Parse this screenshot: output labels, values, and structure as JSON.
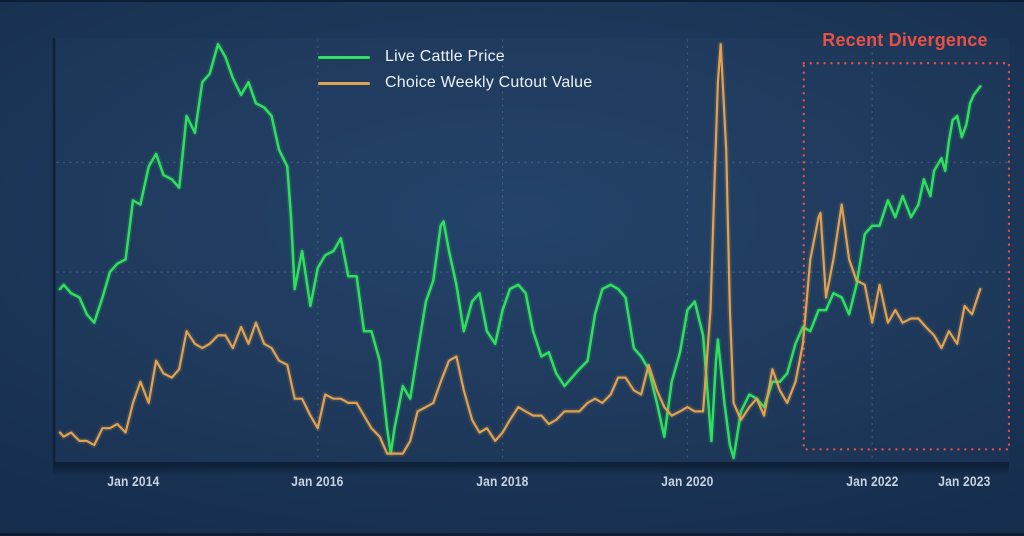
{
  "chart_data": {
    "type": "line",
    "title": "",
    "background_color": "#1c3759",
    "legend_position": "top-center",
    "grid": "dotted",
    "annotation": {
      "label": "Recent Divergence",
      "color": "#ea5044",
      "box": {
        "t0": 2021.26,
        "t1": 2023.48,
        "v0": 3,
        "v1": 94.5
      }
    },
    "x_axis": {
      "domain": [
        2013.18,
        2023.49
      ],
      "ticks": [
        {
          "t": 2014,
          "label": "Jan 2014"
        },
        {
          "t": 2016,
          "label": "Jan 2016"
        },
        {
          "t": 2018,
          "label": "Jan 2018"
        },
        {
          "t": 2020,
          "label": "Jan 2020"
        },
        {
          "t": 2022,
          "label": "Jan 2022"
        },
        {
          "t": 2023,
          "label": "Jan 2023"
        }
      ]
    },
    "y_axis": {
      "domain": [
        0,
        105
      ],
      "unit": "relative level (y-axis unlabeled in source)",
      "ticks": []
    },
    "gridlines": {
      "horizontal_values": [
        45,
        71
      ],
      "vertical_years": [
        2016,
        2018,
        2020,
        2022
      ]
    },
    "series": [
      {
        "name": "Live Cattle Price",
        "color": "#2fe05e",
        "points": [
          [
            2013.21,
            41
          ],
          [
            2013.25,
            42
          ],
          [
            2013.33,
            40
          ],
          [
            2013.42,
            39
          ],
          [
            2013.5,
            35
          ],
          [
            2013.58,
            33
          ],
          [
            2013.67,
            39
          ],
          [
            2013.75,
            45
          ],
          [
            2013.83,
            47
          ],
          [
            2013.92,
            48
          ],
          [
            2014,
            62
          ],
          [
            2014.08,
            61
          ],
          [
            2014.17,
            70
          ],
          [
            2014.25,
            73
          ],
          [
            2014.33,
            68
          ],
          [
            2014.42,
            67
          ],
          [
            2014.5,
            65
          ],
          [
            2014.58,
            82
          ],
          [
            2014.67,
            78
          ],
          [
            2014.75,
            90
          ],
          [
            2014.83,
            92
          ],
          [
            2014.92,
            99
          ],
          [
            2015,
            96
          ],
          [
            2015.08,
            91
          ],
          [
            2015.17,
            87
          ],
          [
            2015.25,
            90
          ],
          [
            2015.33,
            85
          ],
          [
            2015.42,
            84
          ],
          [
            2015.5,
            82
          ],
          [
            2015.58,
            74
          ],
          [
            2015.67,
            70
          ],
          [
            2015.71,
            58
          ],
          [
            2015.75,
            41
          ],
          [
            2015.83,
            50
          ],
          [
            2015.92,
            37
          ],
          [
            2016,
            46
          ],
          [
            2016.08,
            49
          ],
          [
            2016.17,
            50
          ],
          [
            2016.25,
            53
          ],
          [
            2016.33,
            44
          ],
          [
            2016.42,
            44
          ],
          [
            2016.5,
            31
          ],
          [
            2016.58,
            31
          ],
          [
            2016.67,
            24
          ],
          [
            2016.75,
            8
          ],
          [
            2016.79,
            2
          ],
          [
            2016.83,
            8
          ],
          [
            2016.92,
            18
          ],
          [
            2017,
            15
          ],
          [
            2017.08,
            26
          ],
          [
            2017.17,
            38
          ],
          [
            2017.25,
            43
          ],
          [
            2017.33,
            56
          ],
          [
            2017.36,
            57
          ],
          [
            2017.42,
            50
          ],
          [
            2017.5,
            42
          ],
          [
            2017.58,
            31
          ],
          [
            2017.67,
            38
          ],
          [
            2017.75,
            40
          ],
          [
            2017.83,
            31
          ],
          [
            2017.92,
            28
          ],
          [
            2018,
            36
          ],
          [
            2018.08,
            41
          ],
          [
            2018.17,
            42
          ],
          [
            2018.25,
            40
          ],
          [
            2018.33,
            31
          ],
          [
            2018.42,
            25
          ],
          [
            2018.5,
            26
          ],
          [
            2018.58,
            21
          ],
          [
            2018.67,
            18
          ],
          [
            2018.75,
            20
          ],
          [
            2018.83,
            22
          ],
          [
            2018.92,
            24
          ],
          [
            2019,
            35
          ],
          [
            2019.08,
            41
          ],
          [
            2019.17,
            42
          ],
          [
            2019.25,
            41
          ],
          [
            2019.33,
            39
          ],
          [
            2019.42,
            27
          ],
          [
            2019.5,
            25
          ],
          [
            2019.58,
            22
          ],
          [
            2019.67,
            14
          ],
          [
            2019.75,
            6
          ],
          [
            2019.83,
            19
          ],
          [
            2019.92,
            26
          ],
          [
            2020,
            36
          ],
          [
            2020.08,
            38
          ],
          [
            2020.17,
            30
          ],
          [
            2020.22,
            16
          ],
          [
            2020.26,
            5
          ],
          [
            2020.31,
            24
          ],
          [
            2020.33,
            29
          ],
          [
            2020.4,
            14
          ],
          [
            2020.46,
            4
          ],
          [
            2020.5,
            1
          ],
          [
            2020.58,
            12
          ],
          [
            2020.67,
            16
          ],
          [
            2020.75,
            15
          ],
          [
            2020.83,
            13
          ],
          [
            2020.92,
            19
          ],
          [
            2021,
            19
          ],
          [
            2021.08,
            21
          ],
          [
            2021.17,
            28
          ],
          [
            2021.25,
            32
          ],
          [
            2021.33,
            31
          ],
          [
            2021.42,
            36
          ],
          [
            2021.5,
            36
          ],
          [
            2021.58,
            40
          ],
          [
            2021.67,
            39
          ],
          [
            2021.75,
            35
          ],
          [
            2021.83,
            42
          ],
          [
            2021.92,
            54
          ],
          [
            2022,
            56
          ],
          [
            2022.08,
            56
          ],
          [
            2022.17,
            62
          ],
          [
            2022.25,
            58
          ],
          [
            2022.33,
            63
          ],
          [
            2022.42,
            58
          ],
          [
            2022.5,
            61
          ],
          [
            2022.56,
            67
          ],
          [
            2022.63,
            63
          ],
          [
            2022.67,
            69
          ],
          [
            2022.75,
            72
          ],
          [
            2022.79,
            69
          ],
          [
            2022.83,
            76
          ],
          [
            2022.87,
            81
          ],
          [
            2022.92,
            82
          ],
          [
            2022.97,
            77
          ],
          [
            2023.02,
            80
          ],
          [
            2023.06,
            85
          ],
          [
            2023.1,
            87
          ],
          [
            2023.17,
            89
          ]
        ]
      },
      {
        "name": "Choice Weekly Cutout Value",
        "color": "#e1a34f",
        "points": [
          [
            2013.21,
            7
          ],
          [
            2013.25,
            6
          ],
          [
            2013.33,
            7
          ],
          [
            2013.42,
            5
          ],
          [
            2013.5,
            5
          ],
          [
            2013.58,
            4
          ],
          [
            2013.67,
            8
          ],
          [
            2013.75,
            8
          ],
          [
            2013.83,
            9
          ],
          [
            2013.92,
            7
          ],
          [
            2014,
            14
          ],
          [
            2014.08,
            19
          ],
          [
            2014.17,
            14
          ],
          [
            2014.25,
            24
          ],
          [
            2014.33,
            21
          ],
          [
            2014.42,
            20
          ],
          [
            2014.5,
            22
          ],
          [
            2014.58,
            31
          ],
          [
            2014.67,
            28
          ],
          [
            2014.75,
            27
          ],
          [
            2014.83,
            28
          ],
          [
            2014.92,
            30
          ],
          [
            2015,
            30
          ],
          [
            2015.08,
            27
          ],
          [
            2015.17,
            32
          ],
          [
            2015.25,
            28
          ],
          [
            2015.33,
            33
          ],
          [
            2015.42,
            28
          ],
          [
            2015.5,
            27
          ],
          [
            2015.58,
            24
          ],
          [
            2015.67,
            23
          ],
          [
            2015.75,
            15
          ],
          [
            2015.83,
            15
          ],
          [
            2015.92,
            11
          ],
          [
            2016,
            8
          ],
          [
            2016.08,
            16
          ],
          [
            2016.17,
            15
          ],
          [
            2016.25,
            15
          ],
          [
            2016.33,
            14
          ],
          [
            2016.42,
            14
          ],
          [
            2016.5,
            11
          ],
          [
            2016.58,
            8
          ],
          [
            2016.67,
            6
          ],
          [
            2016.75,
            2
          ],
          [
            2016.83,
            2
          ],
          [
            2016.92,
            2
          ],
          [
            2017,
            5
          ],
          [
            2017.08,
            12
          ],
          [
            2017.17,
            13
          ],
          [
            2017.25,
            14
          ],
          [
            2017.33,
            19
          ],
          [
            2017.42,
            24
          ],
          [
            2017.5,
            25
          ],
          [
            2017.58,
            17
          ],
          [
            2017.67,
            10
          ],
          [
            2017.75,
            7
          ],
          [
            2017.83,
            8
          ],
          [
            2017.92,
            5
          ],
          [
            2018,
            7
          ],
          [
            2018.08,
            10
          ],
          [
            2018.17,
            13
          ],
          [
            2018.25,
            12
          ],
          [
            2018.33,
            11
          ],
          [
            2018.42,
            11
          ],
          [
            2018.5,
            9
          ],
          [
            2018.58,
            10
          ],
          [
            2018.67,
            12
          ],
          [
            2018.75,
            12
          ],
          [
            2018.83,
            12
          ],
          [
            2018.92,
            14
          ],
          [
            2019,
            15
          ],
          [
            2019.08,
            14
          ],
          [
            2019.17,
            16
          ],
          [
            2019.25,
            20
          ],
          [
            2019.33,
            20
          ],
          [
            2019.42,
            17
          ],
          [
            2019.5,
            16
          ],
          [
            2019.58,
            23
          ],
          [
            2019.67,
            17
          ],
          [
            2019.75,
            13
          ],
          [
            2019.83,
            11
          ],
          [
            2019.92,
            12
          ],
          [
            2020,
            13
          ],
          [
            2020.08,
            12
          ],
          [
            2020.17,
            12
          ],
          [
            2020.25,
            36
          ],
          [
            2020.29,
            64
          ],
          [
            2020.33,
            90
          ],
          [
            2020.36,
            99
          ],
          [
            2020.42,
            74
          ],
          [
            2020.46,
            36
          ],
          [
            2020.5,
            14
          ],
          [
            2020.58,
            10
          ],
          [
            2020.67,
            13
          ],
          [
            2020.75,
            15
          ],
          [
            2020.83,
            11
          ],
          [
            2020.92,
            22
          ],
          [
            2021,
            17
          ],
          [
            2021.08,
            14
          ],
          [
            2021.17,
            19
          ],
          [
            2021.25,
            28
          ],
          [
            2021.33,
            48
          ],
          [
            2021.42,
            58
          ],
          [
            2021.44,
            59
          ],
          [
            2021.5,
            39
          ],
          [
            2021.58,
            48
          ],
          [
            2021.67,
            61
          ],
          [
            2021.75,
            48
          ],
          [
            2021.83,
            43
          ],
          [
            2021.92,
            42
          ],
          [
            2022,
            33
          ],
          [
            2022.08,
            42
          ],
          [
            2022.17,
            33
          ],
          [
            2022.25,
            36
          ],
          [
            2022.33,
            33
          ],
          [
            2022.42,
            34
          ],
          [
            2022.5,
            34
          ],
          [
            2022.58,
            32
          ],
          [
            2022.67,
            30
          ],
          [
            2022.75,
            27
          ],
          [
            2022.83,
            31
          ],
          [
            2022.92,
            28
          ],
          [
            2023,
            37
          ],
          [
            2023.08,
            35
          ],
          [
            2023.17,
            41
          ]
        ]
      }
    ]
  }
}
